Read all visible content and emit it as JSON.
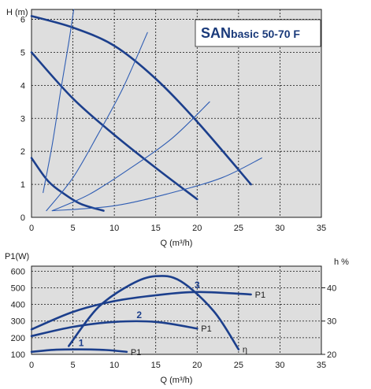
{
  "chart_data": [
    {
      "type": "line",
      "title": "SANbasic 50-70 F",
      "title_main": "SAN",
      "title_rest": "basic 50-70 F",
      "ylabel": "H (m)",
      "xlabel": "Q (m³/h)",
      "xlim": [
        0,
        35
      ],
      "ylim": [
        0,
        6.3
      ],
      "x_ticks": [
        0,
        5,
        10,
        15,
        20,
        25,
        30,
        35
      ],
      "y_ticks": [
        0,
        1,
        2,
        3,
        4,
        5,
        6
      ],
      "grid": true,
      "background": "#dedede",
      "series": [
        {
          "kind": "pump",
          "x": [
            0,
            5,
            10,
            15,
            20,
            26.5
          ],
          "y": [
            6.1,
            5.75,
            5.2,
            4.2,
            2.9,
            1.0
          ]
        },
        {
          "kind": "pump",
          "x": [
            0,
            5,
            10,
            15,
            20
          ],
          "y": [
            5.0,
            3.6,
            2.5,
            1.5,
            0.55
          ]
        },
        {
          "kind": "pump",
          "x": [
            0,
            2,
            4,
            6,
            8.7
          ],
          "y": [
            1.8,
            1.1,
            0.7,
            0.4,
            0.2
          ]
        },
        {
          "kind": "system",
          "x": [
            1.4,
            2.5,
            3.5,
            4.5,
            5.1
          ],
          "y": [
            0.75,
            2.2,
            3.8,
            5.3,
            6.3
          ]
        },
        {
          "kind": "system",
          "x": [
            1.8,
            5,
            8,
            11,
            14
          ],
          "y": [
            0.2,
            1.2,
            2.5,
            3.9,
            5.6
          ]
        },
        {
          "kind": "system",
          "x": [
            2.5,
            7,
            12,
            17,
            21.5
          ],
          "y": [
            0.2,
            0.7,
            1.5,
            2.4,
            3.5
          ]
        },
        {
          "kind": "system",
          "x": [
            2.5,
            10,
            17,
            23,
            27.8
          ],
          "y": [
            0.2,
            0.35,
            0.75,
            1.2,
            1.8
          ]
        }
      ]
    },
    {
      "type": "line",
      "ylabel": "P1(W)",
      "y2label": "h %",
      "xlabel": "Q (m³/h)",
      "xlim": [
        0,
        35
      ],
      "ylim": [
        100,
        630
      ],
      "y2lim": [
        20,
        46.5
      ],
      "x_ticks": [
        0,
        5,
        10,
        15,
        20,
        25,
        30,
        35
      ],
      "y_ticks": [
        100,
        200,
        300,
        400,
        500,
        600
      ],
      "y2_ticks": [
        20,
        30,
        40
      ],
      "y2_tick_labels": [
        "20",
        "30",
        "40"
      ],
      "grid": true,
      "background": "#dedede",
      "series": [
        {
          "name": "P1",
          "label": "1",
          "x": [
            0,
            3,
            6,
            9,
            11.5
          ],
          "y": [
            115,
            128,
            130,
            126,
            115
          ]
        },
        {
          "name": "P1",
          "label": "2",
          "x": [
            0,
            5,
            10,
            15,
            20
          ],
          "y": [
            210,
            265,
            295,
            295,
            255
          ]
        },
        {
          "name": "P1",
          "label": "3",
          "x": [
            0,
            5,
            10,
            15,
            20,
            26.5
          ],
          "y": [
            250,
            355,
            420,
            455,
            475,
            460
          ]
        },
        {
          "name": "η",
          "axis": "right",
          "x": [
            4.5,
            8,
            12,
            15,
            18,
            22,
            25
          ],
          "y": [
            22.5,
            34,
            41,
            43.5,
            42,
            33,
            21.5
          ]
        }
      ]
    }
  ]
}
